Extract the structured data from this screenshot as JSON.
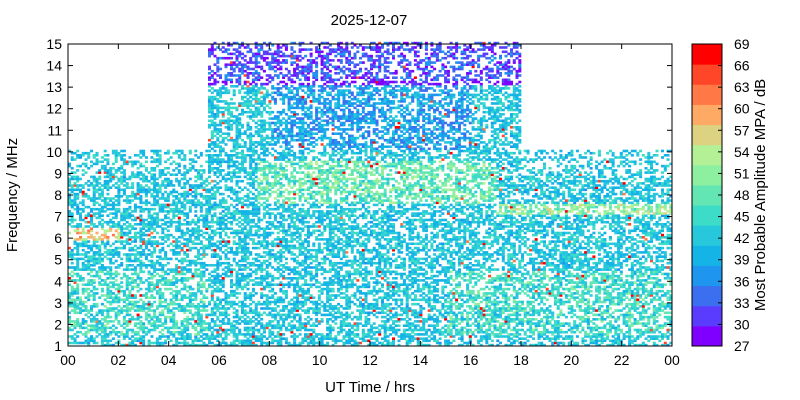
{
  "chart_data": {
    "type": "heatmap",
    "title": "2025-12-07",
    "xlabel": "UT Time / hrs",
    "ylabel": "Frequency / MHz",
    "colorbar_label": "Most Probable Amplitude MPA / dB",
    "xlim": [
      0,
      24
    ],
    "ylim": [
      1,
      15
    ],
    "x_ticks": [
      "00",
      "02",
      "04",
      "06",
      "08",
      "10",
      "12",
      "14",
      "16",
      "18",
      "20",
      "22",
      "00"
    ],
    "y_ticks": [
      "1",
      "2",
      "3",
      "4",
      "5",
      "6",
      "7",
      "8",
      "9",
      "10",
      "11",
      "12",
      "13",
      "14",
      "15"
    ],
    "colorbar_ticks": [
      "27",
      "30",
      "33",
      "36",
      "39",
      "42",
      "45",
      "48",
      "51",
      "54",
      "57",
      "60",
      "63",
      "66",
      "69"
    ],
    "colorbar_range": [
      27,
      69
    ],
    "colorbar_colors": [
      "#7f00ff",
      "#5a3cff",
      "#3c6ef0",
      "#1e96f0",
      "#14b4e6",
      "#28c8dc",
      "#3cdcc8",
      "#64e6b4",
      "#8cf0a0",
      "#b4f096",
      "#dcd282",
      "#ffaa64",
      "#ff7846",
      "#ff4628",
      "#ff0000"
    ],
    "grid": false,
    "coverage_profile": [
      {
        "from": 0,
        "to": 5.5,
        "fmax": 10
      },
      {
        "from": 5.5,
        "to": 7.5,
        "fmax": 15
      },
      {
        "from": 7.5,
        "to": 18,
        "fmax": 15
      },
      {
        "from": 18,
        "to": 24,
        "fmax": 10
      }
    ],
    "bands": [
      {
        "from": 0,
        "to": 5.5,
        "fmin": 1.5,
        "fmax": 4.5,
        "mpa": 45
      },
      {
        "from": 0,
        "to": 2,
        "fmin": 5.8,
        "fmax": 6.4,
        "mpa": 57
      },
      {
        "from": 7.5,
        "to": 17,
        "fmin": 7.5,
        "fmax": 9.5,
        "mpa": 48
      },
      {
        "from": 8,
        "to": 16,
        "fmin": 10,
        "fmax": 13,
        "mpa": 38
      },
      {
        "from": 5.5,
        "to": 18,
        "fmin": 13,
        "fmax": 15,
        "mpa": 28
      },
      {
        "from": 15,
        "to": 24,
        "fmin": 1.5,
        "fmax": 4.5,
        "mpa": 45
      },
      {
        "from": 17,
        "to": 24,
        "fmin": 7,
        "fmax": 7.5,
        "mpa": 51
      }
    ]
  }
}
